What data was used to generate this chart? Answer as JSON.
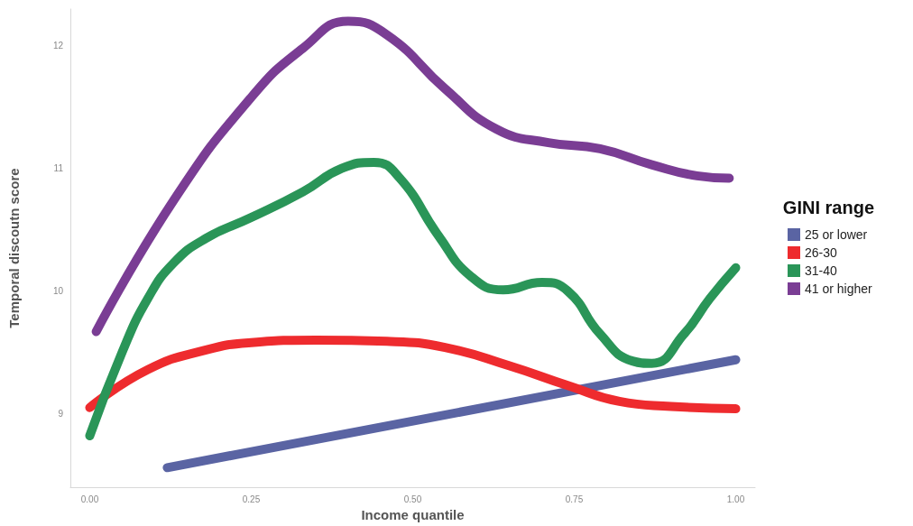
{
  "chart_data": {
    "type": "line",
    "xlabel": "Income quantile",
    "ylabel": "Temporal discoutn score",
    "legend_title": "GINI range",
    "legend": "right",
    "grid": false,
    "line_style": "solid",
    "xlim": [
      -0.03,
      1.03
    ],
    "xticks": [
      {
        "value": 0,
        "label": "0.00"
      },
      {
        "value": 0.25,
        "label": "0.25"
      },
      {
        "value": 0.5,
        "label": "0.50"
      },
      {
        "value": 0.75,
        "label": "0.75"
      },
      {
        "value": 1,
        "label": "1.00"
      }
    ],
    "ylim": [
      8.4,
      12.3
    ],
    "yticks": [
      9,
      10,
      11,
      12
    ],
    "series": [
      {
        "name": "25 or lower",
        "color": "#5a64a3",
        "x": [
          0.12,
          1.0
        ],
        "values": [
          8.56,
          9.44
        ]
      },
      {
        "name": "26-30",
        "color": "#ee2b2e",
        "x": [
          0.0,
          0.09,
          0.18,
          0.25,
          0.35,
          0.46,
          0.55,
          0.65,
          0.74,
          0.82,
          0.9,
          1.0
        ],
        "values": [
          9.05,
          9.36,
          9.52,
          9.58,
          9.6,
          9.59,
          9.54,
          9.39,
          9.23,
          9.1,
          9.06,
          9.04
        ]
      },
      {
        "name": "31-40",
        "color": "#2a9558",
        "x": [
          0.0,
          0.05,
          0.09,
          0.13,
          0.18,
          0.25,
          0.33,
          0.39,
          0.44,
          0.48,
          0.54,
          0.59,
          0.64,
          0.7,
          0.74,
          0.79,
          0.84,
          0.87,
          0.92,
          0.96,
          1.0
        ],
        "values": [
          8.82,
          9.5,
          9.94,
          10.23,
          10.43,
          10.6,
          10.81,
          11.0,
          11.05,
          10.92,
          10.45,
          10.12,
          10.01,
          10.07,
          10.0,
          9.65,
          9.43,
          9.41,
          9.65,
          9.94,
          10.19
        ]
      },
      {
        "name": "41 or higher",
        "color": "#7a3d94",
        "x": [
          0.01,
          0.13,
          0.25,
          0.33,
          0.4,
          0.46,
          0.55,
          0.63,
          0.71,
          0.79,
          0.87,
          0.94,
          0.99
        ],
        "values": [
          9.67,
          10.74,
          11.58,
          11.98,
          12.2,
          12.09,
          11.65,
          11.32,
          11.21,
          11.16,
          11.03,
          10.94,
          10.92
        ]
      }
    ]
  }
}
